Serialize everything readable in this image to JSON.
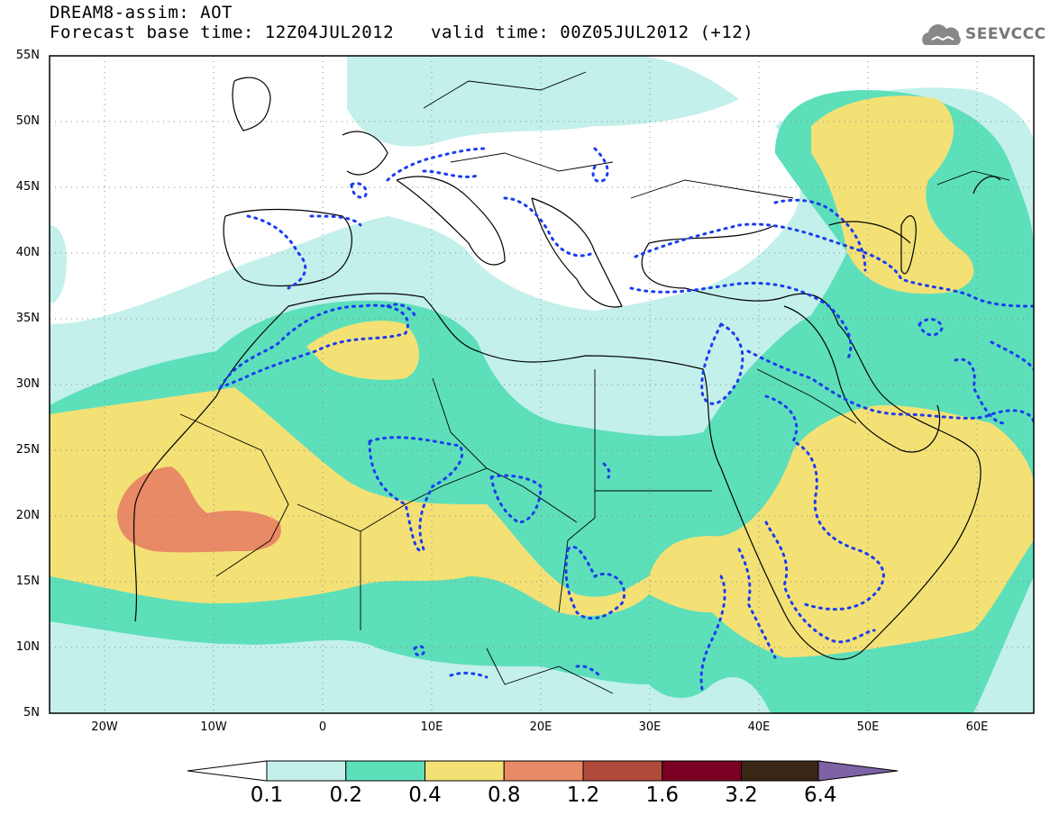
{
  "header": {
    "title": "DREAM8-assim: AOT",
    "base_time": "Forecast base time: 12Z04JUL2012",
    "valid_time": "valid time: 00Z05JUL2012 (+12)",
    "logo_text": "SEEVCCC"
  },
  "map": {
    "lon_range": [
      -25,
      65
    ],
    "lat_range": [
      5,
      55
    ],
    "lat_ticks": [
      "55N",
      "50N",
      "45N",
      "40N",
      "35N",
      "30N",
      "25N",
      "20N",
      "15N",
      "10N",
      "5N"
    ],
    "lon_ticks": [
      "20W",
      "10W",
      "0",
      "10E",
      "20E",
      "30E",
      "40E",
      "50E",
      "60E"
    ],
    "grid": "dotted",
    "contour_line": "dotted-blue"
  },
  "colorbar": {
    "levels": [
      "0.1",
      "0.2",
      "0.4",
      "0.8",
      "1.2",
      "1.6",
      "3.2",
      "6.4"
    ],
    "colors": [
      "#ffffff",
      "#c3f0ea",
      "#5ddfba",
      "#f3e176",
      "#e88a65",
      "#b04a3a",
      "#7b0024",
      "#3b2514",
      "#7d62a6"
    ]
  }
}
